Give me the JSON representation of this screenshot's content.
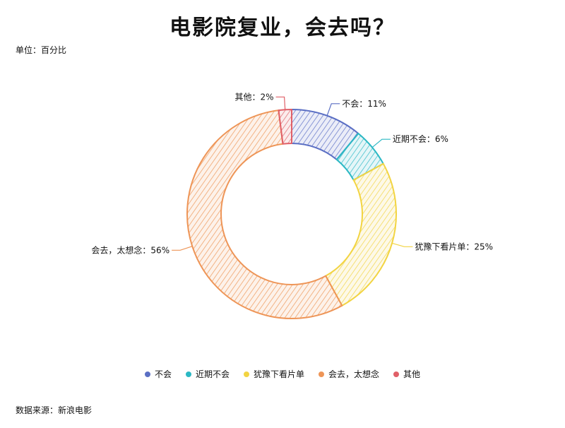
{
  "title": "电影院复业，会去吗？",
  "unit_label": "单位：百分比",
  "source_label": "数据来源：新浪电影",
  "chart_data": {
    "type": "pie",
    "donut": true,
    "categories": [
      "不会",
      "近期不会",
      "犹豫下看片单",
      "会去，太想念",
      "其他"
    ],
    "values": [
      11,
      6,
      25,
      56,
      2
    ],
    "value_suffix": "%",
    "colors": [
      "#5b6fc4",
      "#2bb8c4",
      "#f2d442",
      "#ee9557",
      "#e06068"
    ],
    "legend_position": "bottom"
  }
}
